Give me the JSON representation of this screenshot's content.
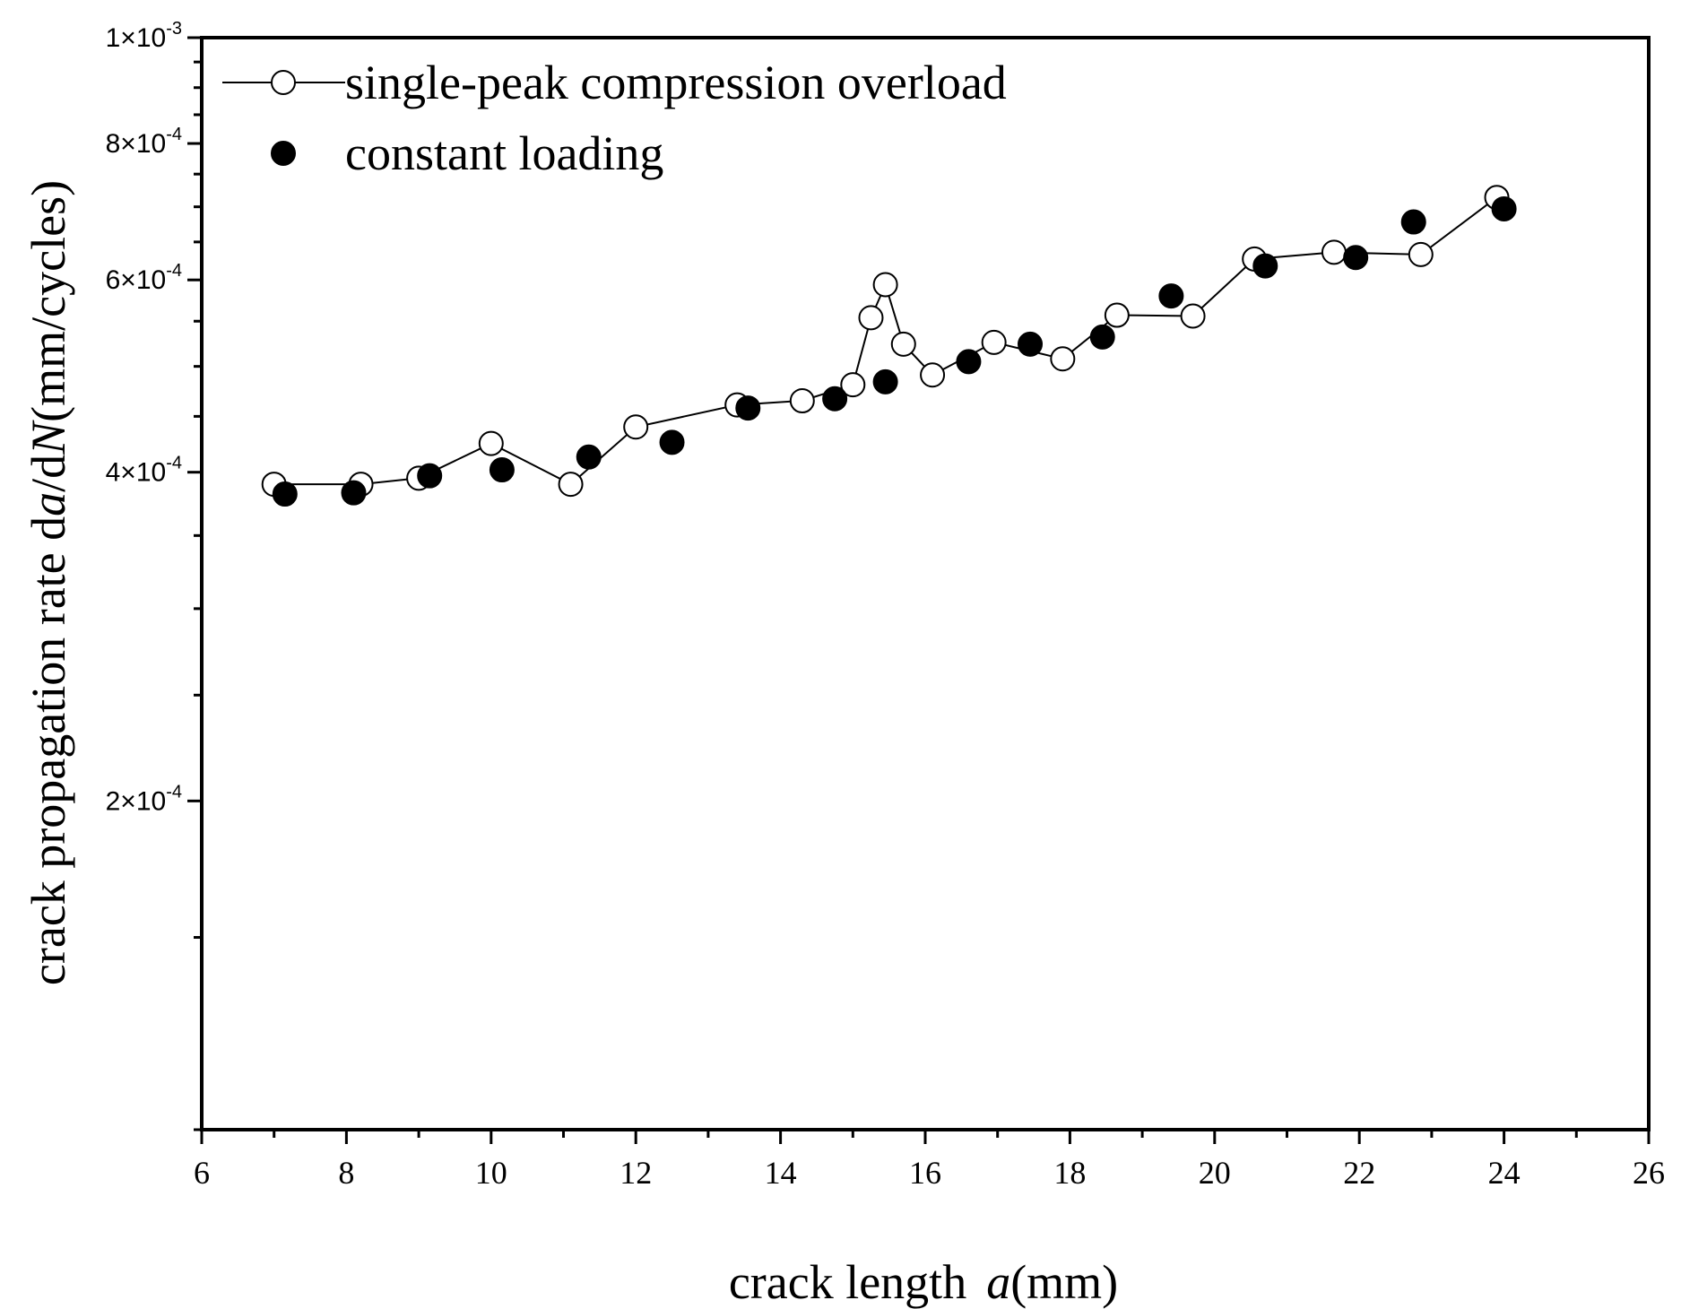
{
  "chart_data": {
    "type": "scatter",
    "title": "",
    "xlabel_prefix": "crack length",
    "xlabel_var": "a",
    "xlabel_unit": "(mm)",
    "ylabel_prefix": "crack propagation rate  d",
    "ylabel_var1": "a",
    "ylabel_mid": "/d",
    "ylabel_var2": "N",
    "ylabel_unit": "(mm/cycles)",
    "xlim": [
      6,
      26
    ],
    "ylim": [
      0.0001,
      0.001
    ],
    "yscale": "log",
    "xticks": [
      "6",
      "8",
      "10",
      "12",
      "14",
      "16",
      "18",
      "20",
      "22",
      "24",
      "26"
    ],
    "yticks": [
      {
        "value": 0.0002,
        "mantissa": "2",
        "exponent": "-4"
      },
      {
        "value": 0.0004,
        "mantissa": "4",
        "exponent": "-4"
      },
      {
        "value": 0.0006,
        "mantissa": "6",
        "exponent": "-4"
      },
      {
        "value": 0.0008,
        "mantissa": "8",
        "exponent": "-4"
      },
      {
        "value": 0.001,
        "mantissa": "1",
        "exponent": "-3"
      }
    ],
    "tick_times": "×10",
    "series": [
      {
        "name": "single-peak compression overload",
        "marker": "open-circle",
        "line": true,
        "x": [
          7.0,
          8.2,
          9.0,
          10.0,
          11.1,
          12.0,
          13.4,
          14.3,
          15.0,
          15.25,
          15.45,
          15.7,
          16.1,
          16.95,
          17.9,
          18.65,
          19.7,
          20.55,
          21.65,
          22.85,
          23.9
        ],
        "y": [
          0.00039,
          0.00039,
          0.000395,
          0.000425,
          0.00039,
          0.00044,
          0.000461,
          0.000465,
          0.000481,
          0.000554,
          0.000594,
          0.000524,
          0.000491,
          0.000526,
          0.000508,
          0.000557,
          0.000556,
          0.000627,
          0.000636,
          0.000633,
          0.000714
        ]
      },
      {
        "name": "constant loading",
        "marker": "filled-circle",
        "line": false,
        "x": [
          7.15,
          8.1,
          9.15,
          10.15,
          11.35,
          12.5,
          13.55,
          14.75,
          15.45,
          16.6,
          17.45,
          18.45,
          19.4,
          20.7,
          21.95,
          22.75,
          24.0
        ],
        "y": [
          0.000382,
          0.000383,
          0.000397,
          0.000402,
          0.000413,
          0.000426,
          0.000458,
          0.000467,
          0.000484,
          0.000505,
          0.000524,
          0.000532,
          0.00058,
          0.000618,
          0.000629,
          0.000678,
          0.000697
        ]
      }
    ]
  }
}
